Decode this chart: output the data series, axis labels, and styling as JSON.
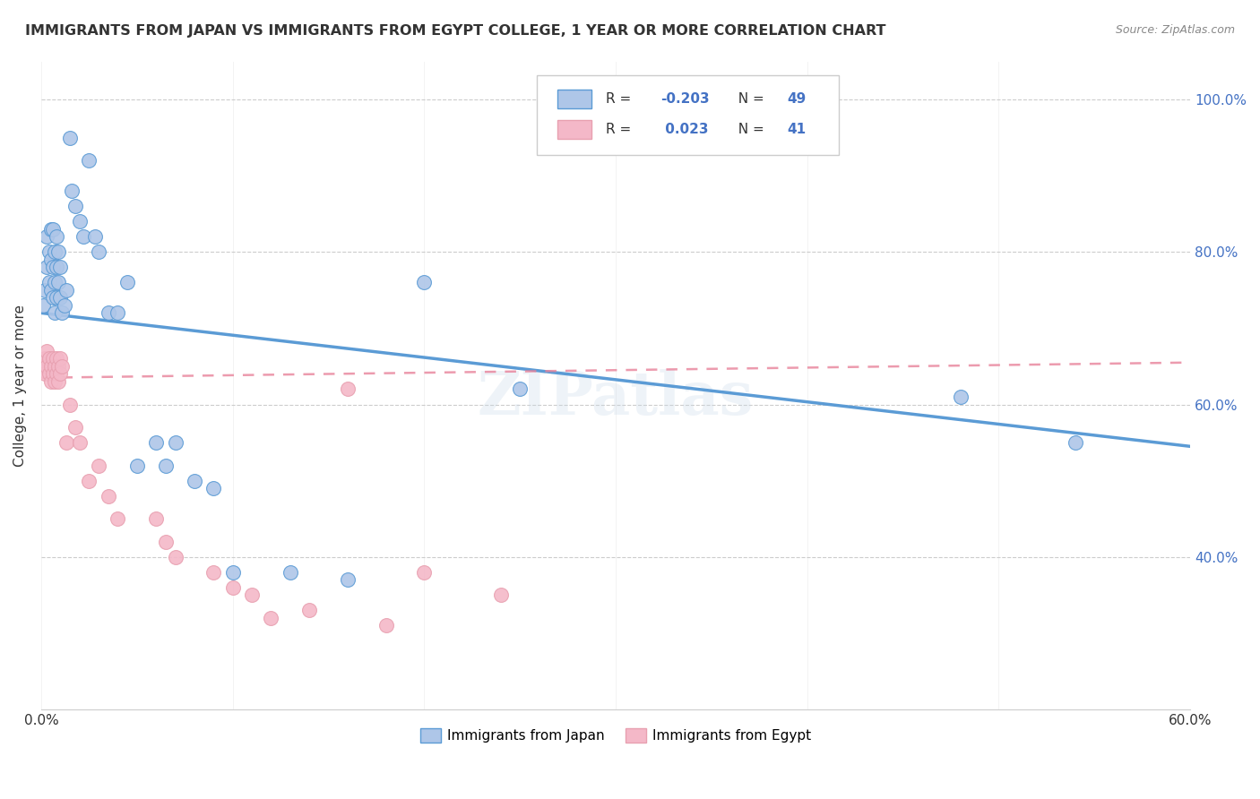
{
  "title": "IMMIGRANTS FROM JAPAN VS IMMIGRANTS FROM EGYPT COLLEGE, 1 YEAR OR MORE CORRELATION CHART",
  "source": "Source: ZipAtlas.com",
  "ylabel": "College, 1 year or more",
  "x_min": 0.0,
  "x_max": 0.6,
  "y_min": 0.2,
  "y_max": 1.05,
  "x_ticks": [
    0.0,
    0.1,
    0.2,
    0.3,
    0.4,
    0.5,
    0.6
  ],
  "x_tick_labels": [
    "0.0%",
    "",
    "",
    "",
    "",
    "",
    "60.0%"
  ],
  "y_ticks_right": [
    0.4,
    0.6,
    0.8,
    1.0
  ],
  "y_tick_labels_right": [
    "40.0%",
    "60.0%",
    "80.0%",
    "100.0%"
  ],
  "japan_R": -0.203,
  "japan_N": 49,
  "egypt_R": 0.023,
  "egypt_N": 41,
  "japan_color": "#aec6e8",
  "egypt_color": "#f4b8c8",
  "japan_line_color": "#5b9bd5",
  "egypt_line_color": "#e8829a",
  "watermark": "ZIPatlas",
  "japan_line_x0": 0.0,
  "japan_line_y0": 0.72,
  "japan_line_x1": 0.6,
  "japan_line_y1": 0.545,
  "egypt_line_x0": 0.0,
  "egypt_line_y0": 0.635,
  "egypt_line_x1": 0.6,
  "egypt_line_y1": 0.655,
  "japan_x": [
    0.001,
    0.002,
    0.003,
    0.003,
    0.004,
    0.004,
    0.005,
    0.005,
    0.005,
    0.006,
    0.006,
    0.006,
    0.007,
    0.007,
    0.007,
    0.008,
    0.008,
    0.008,
    0.009,
    0.009,
    0.01,
    0.01,
    0.011,
    0.012,
    0.013,
    0.015,
    0.016,
    0.018,
    0.02,
    0.022,
    0.025,
    0.028,
    0.03,
    0.035,
    0.04,
    0.045,
    0.05,
    0.06,
    0.065,
    0.07,
    0.08,
    0.09,
    0.1,
    0.13,
    0.16,
    0.2,
    0.25,
    0.48,
    0.54
  ],
  "japan_y": [
    0.73,
    0.75,
    0.78,
    0.82,
    0.76,
    0.8,
    0.75,
    0.79,
    0.83,
    0.74,
    0.78,
    0.83,
    0.72,
    0.76,
    0.8,
    0.74,
    0.78,
    0.82,
    0.76,
    0.8,
    0.74,
    0.78,
    0.72,
    0.73,
    0.75,
    0.95,
    0.88,
    0.86,
    0.84,
    0.82,
    0.92,
    0.82,
    0.8,
    0.72,
    0.72,
    0.76,
    0.52,
    0.55,
    0.52,
    0.55,
    0.5,
    0.49,
    0.38,
    0.38,
    0.37,
    0.76,
    0.62,
    0.61,
    0.55
  ],
  "egypt_x": [
    0.001,
    0.002,
    0.002,
    0.003,
    0.003,
    0.004,
    0.004,
    0.005,
    0.005,
    0.006,
    0.006,
    0.007,
    0.007,
    0.008,
    0.008,
    0.009,
    0.009,
    0.01,
    0.01,
    0.011,
    0.013,
    0.015,
    0.018,
    0.02,
    0.025,
    0.03,
    0.035,
    0.04,
    0.06,
    0.065,
    0.07,
    0.09,
    0.1,
    0.11,
    0.12,
    0.14,
    0.16,
    0.18,
    0.2,
    0.24,
    0.31
  ],
  "egypt_y": [
    0.65,
    0.66,
    0.64,
    0.65,
    0.67,
    0.64,
    0.66,
    0.63,
    0.65,
    0.64,
    0.66,
    0.63,
    0.65,
    0.64,
    0.66,
    0.63,
    0.65,
    0.64,
    0.66,
    0.65,
    0.55,
    0.6,
    0.57,
    0.55,
    0.5,
    0.52,
    0.48,
    0.45,
    0.45,
    0.42,
    0.4,
    0.38,
    0.36,
    0.35,
    0.32,
    0.33,
    0.62,
    0.31,
    0.38,
    0.35,
    1.02
  ]
}
